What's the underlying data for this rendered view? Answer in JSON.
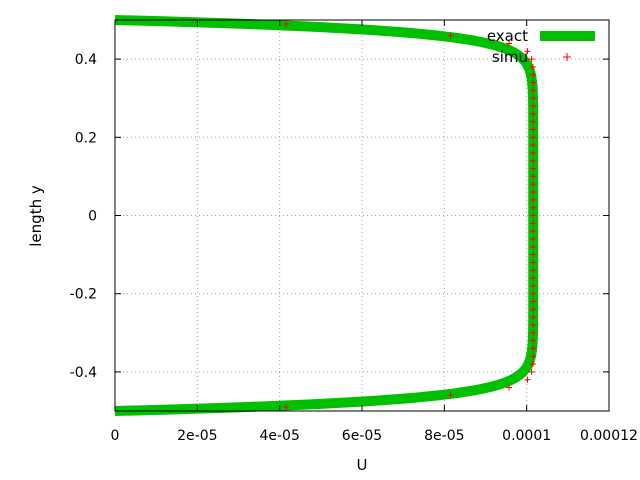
{
  "chart_data": {
    "type": "line",
    "xlabel": "U",
    "ylabel": "length y",
    "xlim": [
      0,
      0.00012
    ],
    "ylim": [
      -0.5,
      0.5
    ],
    "grid": true,
    "legend_position": "top-right",
    "x_ticks": [
      {
        "value": 0,
        "label": "0"
      },
      {
        "value": 2e-05,
        "label": "2e-05"
      },
      {
        "value": 4e-05,
        "label": "4e-05"
      },
      {
        "value": 6e-05,
        "label": "6e-05"
      },
      {
        "value": 8e-05,
        "label": "8e-05"
      },
      {
        "value": 0.0001,
        "label": "0.0001"
      },
      {
        "value": 0.00012,
        "label": "0.00012"
      }
    ],
    "y_ticks": [
      {
        "value": -0.4,
        "label": "-0.4"
      },
      {
        "value": -0.2,
        "label": "-0.2"
      },
      {
        "value": 0,
        "label": "0"
      },
      {
        "value": 0.2,
        "label": "0.2"
      },
      {
        "value": 0.4,
        "label": "0.4"
      }
    ],
    "series": [
      {
        "name": "exact",
        "style": "line",
        "color": "#00c000",
        "curve": {
          "U_max": 0.0001016,
          "half_width": 0.5,
          "boundary_layer_param": 37
        }
      },
      {
        "name": "simu",
        "style": "points",
        "color": "#ff0000",
        "y": [
          -0.49,
          -0.46,
          -0.44,
          -0.42,
          -0.4,
          -0.38,
          -0.36,
          -0.34,
          -0.32,
          -0.3,
          -0.28,
          -0.26,
          -0.24,
          -0.22,
          -0.2,
          -0.18,
          -0.16,
          -0.14,
          -0.12,
          -0.1,
          -0.08,
          -0.06,
          -0.04,
          -0.02,
          0,
          0.02,
          0.04,
          0.06,
          0.08,
          0.1,
          0.12,
          0.14,
          0.16,
          0.18,
          0.2,
          0.22,
          0.24,
          0.26,
          0.28,
          0.3,
          0.32,
          0.34,
          0.36,
          0.38,
          0.4,
          0.42,
          0.44,
          0.46,
          0.49
        ],
        "x": [
          4.16e-05,
          8.15e-05,
          9.57e-05,
          0.0001002,
          0.0001012,
          0.0001015,
          0.0001016,
          0.0001016,
          0.0001016,
          0.0001016,
          0.0001016,
          0.0001016,
          0.0001016,
          0.0001016,
          0.0001016,
          0.0001016,
          0.0001016,
          0.0001016,
          0.0001016,
          0.0001016,
          0.0001016,
          0.0001016,
          0.0001016,
          0.0001016,
          0.0001016,
          0.0001016,
          0.0001016,
          0.0001016,
          0.0001016,
          0.0001016,
          0.0001016,
          0.0001016,
          0.0001016,
          0.0001016,
          0.0001016,
          0.0001016,
          0.0001016,
          0.0001016,
          0.0001016,
          0.0001016,
          0.0001016,
          0.0001016,
          0.0001016,
          0.0001015,
          0.0001012,
          0.0001002,
          9.57e-05,
          8.15e-05,
          4.16e-05
        ]
      }
    ]
  }
}
